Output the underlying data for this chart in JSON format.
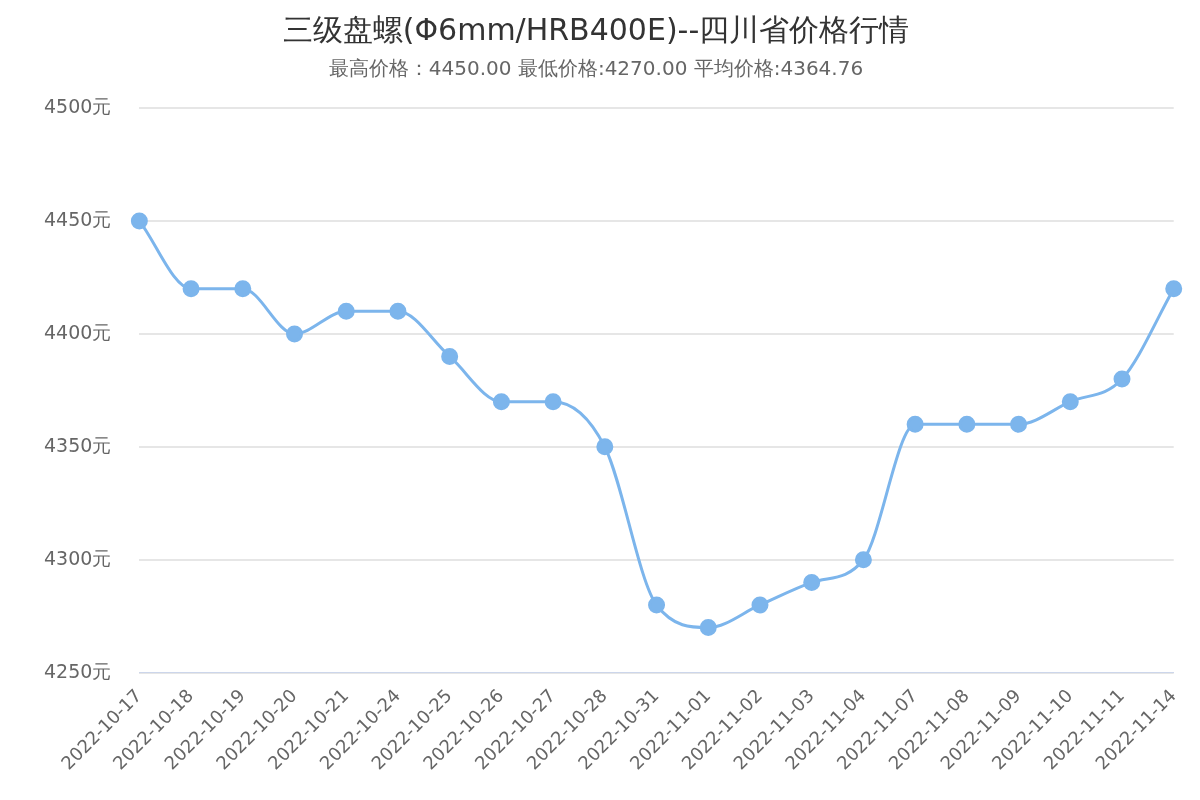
{
  "chart_data": {
    "type": "line",
    "title": "三级盘螺(Φ6mm/HRB400E)--四川省价格行情",
    "subtitle": "最高价格：4450.00 最低价格:4270.00 平均价格:4364.76",
    "categories": [
      "2022-10-17",
      "2022-10-18",
      "2022-10-19",
      "2022-10-20",
      "2022-10-21",
      "2022-10-24",
      "2022-10-25",
      "2022-10-26",
      "2022-10-27",
      "2022-10-28",
      "2022-10-31",
      "2022-11-01",
      "2022-11-02",
      "2022-11-03",
      "2022-11-04",
      "2022-11-07",
      "2022-11-08",
      "2022-11-09",
      "2022-11-10",
      "2022-11-11",
      "2022-11-14"
    ],
    "series": [
      {
        "color": "#7cb5ec",
        "values": [
          4450,
          4420,
          4420,
          4400,
          4410,
          4410,
          4390,
          4370,
          4370,
          4350,
          4280,
          4270,
          4280,
          4290,
          4300,
          4360,
          4360,
          4360,
          4370,
          4380,
          4420
        ]
      }
    ],
    "ylim": [
      4250,
      4500
    ],
    "yticks": [
      {
        "value": 4250,
        "label": "4250元"
      },
      {
        "value": 4300,
        "label": "4300元"
      },
      {
        "value": 4350,
        "label": "4350元"
      },
      {
        "value": 4400,
        "label": "4400元"
      },
      {
        "value": 4450,
        "label": "4450元"
      },
      {
        "value": 4500,
        "label": "4500元"
      }
    ],
    "grid": "y",
    "legend": false,
    "marker": "circle",
    "line_style": "solid"
  }
}
